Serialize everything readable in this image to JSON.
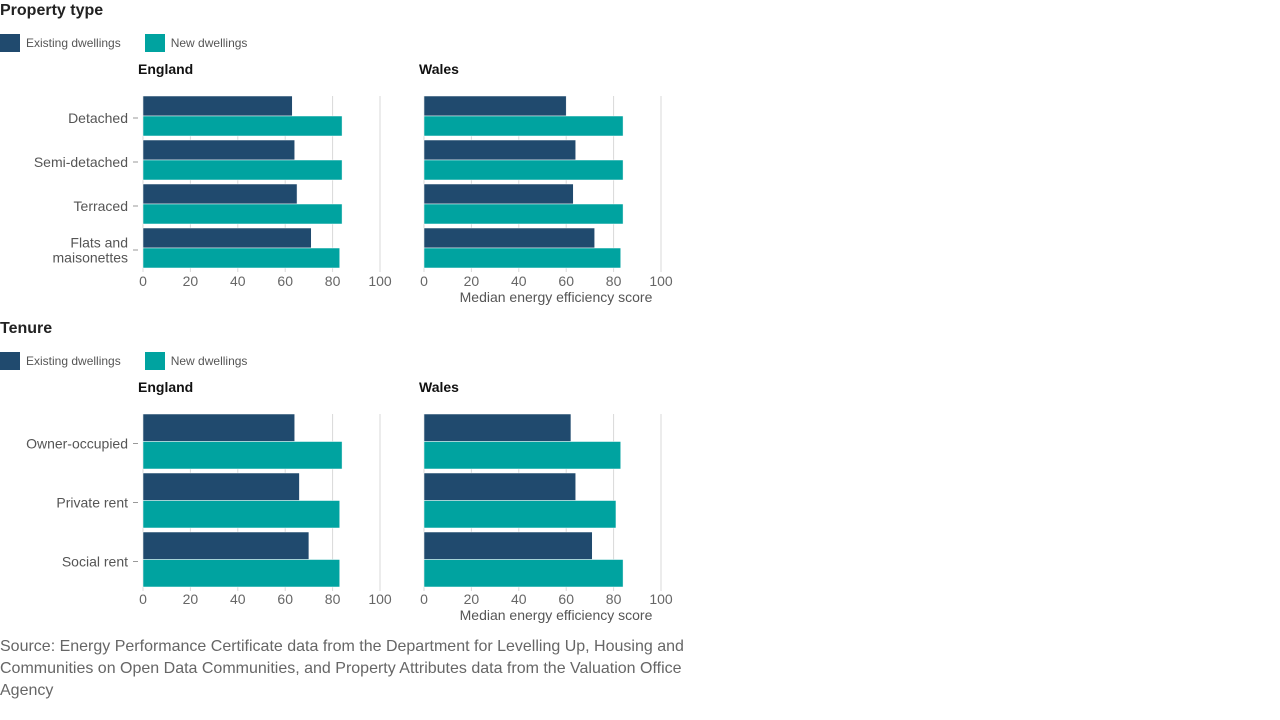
{
  "legend": {
    "existing_label": "Existing dwellings",
    "new_label": "New dwellings",
    "existing_color": "#204a6e",
    "new_color": "#00a3a0"
  },
  "sections": [
    {
      "title": "Property type"
    },
    {
      "title": "Tenure"
    }
  ],
  "panels": {
    "left": "England",
    "right": "Wales"
  },
  "x_axis_title": "Median energy efficiency score",
  "source": "Source: Energy Performance Certificate data from the Department for Levelling Up, Housing and Communities on Open Data Communities, and Property Attributes data from the Valuation Office Agency",
  "chart_data": [
    {
      "type": "bar",
      "orientation": "horizontal",
      "title": "Property type",
      "categories": [
        [
          "Detached"
        ],
        [
          "Semi-detached"
        ],
        [
          "Terraced"
        ],
        [
          "Flats and",
          "maisonettes"
        ]
      ],
      "xlim": [
        0,
        100
      ],
      "xticks": [
        "0",
        "20",
        "40",
        "60",
        "80",
        "100"
      ],
      "xlabel": "Median energy efficiency score",
      "grid": true,
      "panels": [
        {
          "name": "England",
          "series": [
            {
              "name": "Existing dwellings",
              "values": [
                63,
                64,
                65,
                71
              ]
            },
            {
              "name": "New dwellings",
              "values": [
                84,
                84,
                84,
                83
              ]
            }
          ]
        },
        {
          "name": "Wales",
          "series": [
            {
              "name": "Existing dwellings",
              "values": [
                60,
                64,
                63,
                72
              ]
            },
            {
              "name": "New dwellings",
              "values": [
                84,
                84,
                84,
                83
              ]
            }
          ]
        }
      ]
    },
    {
      "type": "bar",
      "orientation": "horizontal",
      "title": "Tenure",
      "categories": [
        [
          "Owner-occupied"
        ],
        [
          "Private rent"
        ],
        [
          "Social rent"
        ]
      ],
      "xlim": [
        0,
        100
      ],
      "xticks": [
        "0",
        "20",
        "40",
        "60",
        "80",
        "100"
      ],
      "xlabel": "Median energy efficiency score",
      "grid": true,
      "panels": [
        {
          "name": "England",
          "series": [
            {
              "name": "Existing dwellings",
              "values": [
                64,
                66,
                70
              ]
            },
            {
              "name": "New dwellings",
              "values": [
                84,
                83,
                83
              ]
            }
          ]
        },
        {
          "name": "Wales",
          "series": [
            {
              "name": "Existing dwellings",
              "values": [
                62,
                64,
                71
              ]
            },
            {
              "name": "New dwellings",
              "values": [
                83,
                81,
                84
              ]
            }
          ]
        }
      ]
    }
  ]
}
